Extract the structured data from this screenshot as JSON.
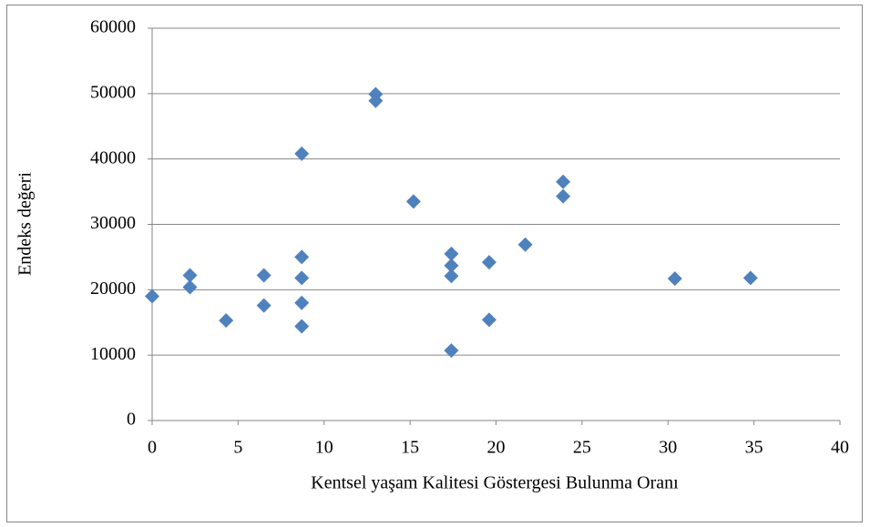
{
  "chart_data": {
    "type": "scatter",
    "x_label": "Kentsel yaşam Kalitesi Göstergesi Bulunma Oranı",
    "y_label": "Endeks değeri",
    "color": "#4f81bd",
    "xlim": [
      0,
      40
    ],
    "xticks": [
      0,
      5,
      10,
      15,
      20,
      25,
      30,
      35,
      40
    ],
    "ylim": [
      0,
      60000
    ],
    "yticks": [
      0,
      10000,
      20000,
      30000,
      40000,
      50000,
      60000
    ],
    "grid": true,
    "x": [
      0,
      2.2,
      2.2,
      4.3,
      6.5,
      6.5,
      8.7,
      8.7,
      8.7,
      8.7,
      8.7,
      13,
      13,
      15.2,
      17.4,
      17.4,
      17.4,
      17.4,
      19.6,
      19.6,
      21.7,
      23.9,
      23.9,
      30.4,
      34.8
    ],
    "values": [
      19000,
      22200,
      20400,
      15300,
      22200,
      17600,
      40800,
      25000,
      21800,
      18000,
      14400,
      49900,
      48900,
      33500,
      25500,
      23700,
      22100,
      10700,
      24200,
      15400,
      26900,
      36500,
      34300,
      21700,
      21800
    ]
  }
}
